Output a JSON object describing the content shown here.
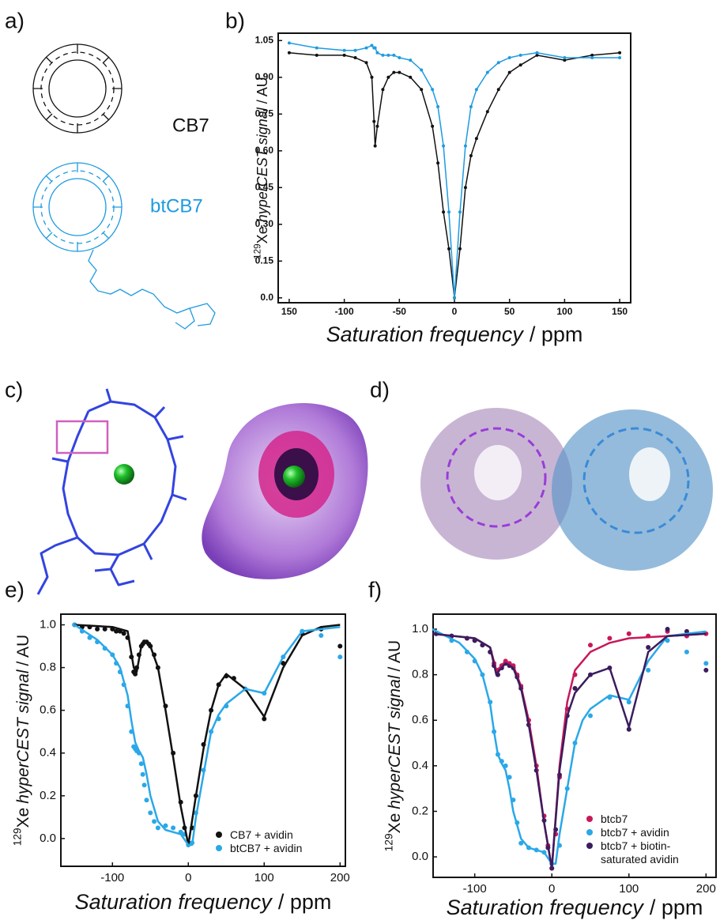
{
  "panels": [
    "a)",
    "b)",
    "c)",
    "d)",
    "e)",
    "f)"
  ],
  "molecules": [
    "CB7",
    "btCB7"
  ],
  "chart_data": [
    {
      "type": "line",
      "xlabel": {
        "italic": "Saturation frequency",
        "unit": "/ ppm"
      },
      "ylabel": {
        "isotope": "129",
        "nucleus": "Xe",
        "italic": "hyperCEST signal",
        "unit": "/ AU"
      },
      "xlim": [
        -160,
        160
      ],
      "ylim": [
        -0.02,
        1.08
      ],
      "xticks": [
        {
          "value": -150,
          "label": "150"
        },
        -100,
        -50,
        0,
        50,
        100,
        150
      ],
      "yticks": [
        {
          "value": 0,
          "label": "0.0"
        },
        0.15,
        {
          "value": 0.3,
          "label": "0.30"
        },
        0.45,
        {
          "value": 0.6,
          "label": "0.60"
        },
        0.75,
        {
          "value": 0.9,
          "label": "0.90"
        },
        1.05
      ],
      "x": [
        -150,
        -125,
        -100,
        -90,
        -80,
        -75,
        -73,
        -72,
        -70,
        -65,
        -60,
        -55,
        -50,
        -40,
        -30,
        -20,
        -15,
        -10,
        -5,
        0,
        5,
        10,
        15,
        20,
        30,
        40,
        50,
        60,
        75,
        100,
        125,
        150
      ],
      "series": [
        {
          "color": "#111111",
          "kind": "line+markers",
          "values": [
            1.0,
            0.99,
            0.99,
            0.98,
            0.96,
            0.9,
            0.72,
            0.62,
            0.7,
            0.85,
            0.9,
            0.92,
            0.92,
            0.9,
            0.85,
            0.7,
            0.55,
            0.35,
            0.2,
            0.0,
            0.2,
            0.45,
            0.58,
            0.65,
            0.76,
            0.85,
            0.92,
            0.95,
            0.99,
            0.97,
            0.99,
            1.0
          ]
        },
        {
          "color": "#1e9be0",
          "kind": "line+markers",
          "values": [
            1.04,
            1.02,
            1.01,
            1.01,
            1.02,
            1.03,
            1.02,
            1.02,
            1.0,
            0.99,
            0.99,
            0.99,
            0.98,
            0.97,
            0.93,
            0.85,
            0.78,
            0.62,
            0.35,
            0.0,
            0.35,
            0.62,
            0.78,
            0.85,
            0.92,
            0.96,
            0.98,
            0.99,
            1.0,
            0.98,
            0.98,
            0.98
          ]
        }
      ]
    },
    {
      "type": "line",
      "xlabel": {
        "italic": "Saturation frequency",
        "unit": "/ ppm"
      },
      "ylabel": {
        "isotope": "129",
        "nucleus": "Xe",
        "italic": "hyperCEST signal",
        "unit": "/ AU"
      },
      "xlim": [
        -168,
        207
      ],
      "ylim": [
        -0.13,
        1.05
      ],
      "xticks": [
        -100,
        0,
        100,
        200
      ],
      "yticks": [
        {
          "value": 0,
          "label": "0.0"
        },
        0.2,
        0.4,
        0.6,
        0.8,
        {
          "value": 1,
          "label": "1.0"
        }
      ],
      "legend": "lower right",
      "series": [
        {
          "name": "CB7 + avidin",
          "color": "#111111",
          "kind": "scatter",
          "x": [
            -150,
            -140,
            -130,
            -120,
            -110,
            -100,
            -95,
            -90,
            -85,
            -80,
            -75,
            -72,
            -70,
            -68,
            -65,
            -62,
            -60,
            -58,
            -55,
            -52,
            -50,
            -45,
            -40,
            -30,
            -20,
            -10,
            -5,
            0,
            5,
            10,
            20,
            30,
            40,
            50,
            60,
            75,
            100,
            125,
            150,
            175,
            200
          ],
          "values": [
            1.0,
            0.99,
            0.99,
            0.98,
            0.98,
            0.98,
            0.97,
            0.97,
            0.96,
            0.94,
            0.85,
            0.78,
            0.77,
            0.8,
            0.86,
            0.9,
            0.91,
            0.92,
            0.92,
            0.91,
            0.9,
            0.86,
            0.8,
            0.62,
            0.4,
            0.17,
            0.05,
            -0.02,
            0.05,
            0.2,
            0.44,
            0.6,
            0.72,
            0.76,
            0.75,
            0.7,
            0.56,
            0.82,
            0.96,
            0.98,
            0.9
          ]
        },
        {
          "name": "btCB7 + avidin",
          "color": "#2aa8e8",
          "kind": "scatter",
          "x": [
            -150,
            -140,
            -130,
            -120,
            -110,
            -100,
            -95,
            -90,
            -85,
            -80,
            -75,
            -72,
            -70,
            -68,
            -65,
            -62,
            -60,
            -58,
            -55,
            -50,
            -45,
            -40,
            -30,
            -20,
            -10,
            -5,
            0,
            5,
            10,
            20,
            30,
            40,
            50,
            75,
            100,
            125,
            150,
            175,
            200
          ],
          "values": [
            1.0,
            0.97,
            0.94,
            0.92,
            0.89,
            0.86,
            0.82,
            0.78,
            0.72,
            0.62,
            0.5,
            0.43,
            0.42,
            0.41,
            0.4,
            0.35,
            0.3,
            0.25,
            0.18,
            0.12,
            0.08,
            0.05,
            0.06,
            0.05,
            0.03,
            0.02,
            -0.03,
            -0.02,
            0.12,
            0.32,
            0.5,
            0.56,
            0.62,
            0.7,
            0.68,
            0.85,
            0.97,
            0.95,
            0.85
          ]
        },
        {
          "color": "#111111",
          "kind": "line",
          "x": [
            -150,
            -100,
            -80,
            -72,
            -68,
            -62,
            -56,
            -50,
            -40,
            -30,
            -20,
            -10,
            0,
            10,
            20,
            30,
            40,
            50,
            75,
            100,
            125,
            150,
            175,
            200
          ],
          "values": [
            1.0,
            0.99,
            0.97,
            0.8,
            0.78,
            0.9,
            0.92,
            0.9,
            0.8,
            0.6,
            0.38,
            0.15,
            -0.03,
            0.2,
            0.42,
            0.6,
            0.72,
            0.77,
            0.7,
            0.57,
            0.8,
            0.95,
            0.99,
            1.0
          ]
        },
        {
          "color": "#2aa8e8",
          "kind": "line",
          "x": [
            -150,
            -120,
            -100,
            -90,
            -80,
            -75,
            -70,
            -65,
            -60,
            -55,
            -50,
            -40,
            -30,
            -20,
            -10,
            0,
            5,
            10,
            20,
            30,
            40,
            50,
            75,
            100,
            125,
            150,
            200
          ],
          "values": [
            1.0,
            0.93,
            0.86,
            0.8,
            0.67,
            0.55,
            0.45,
            0.41,
            0.38,
            0.3,
            0.2,
            0.08,
            0.04,
            0.03,
            0.02,
            -0.03,
            -0.03,
            0.1,
            0.3,
            0.5,
            0.58,
            0.63,
            0.7,
            0.68,
            0.85,
            0.97,
            0.99
          ]
        }
      ]
    },
    {
      "type": "line",
      "xlabel": {
        "italic": "Saturation frequency",
        "unit": "/ ppm"
      },
      "ylabel": {
        "isotope": "129",
        "nucleus": "Xe",
        "italic": "hyperCEST signal",
        "unit": "/ AU"
      },
      "xlim": [
        -154,
        213
      ],
      "ylim": [
        -0.09,
        1.066
      ],
      "xticks": [
        -100,
        0,
        100,
        200
      ],
      "yticks": [
        {
          "value": 0,
          "label": "0.0"
        },
        0.2,
        0.4,
        0.6,
        0.8,
        {
          "value": 1,
          "label": "1.0"
        }
      ],
      "legend": "lower right",
      "series": [
        {
          "name": "btcb7",
          "color": "#c8185a",
          "kind": "scatter",
          "x": [
            -150,
            -130,
            -110,
            -100,
            -90,
            -80,
            -75,
            -70,
            -65,
            -60,
            -55,
            -50,
            -45,
            -40,
            -30,
            -20,
            -10,
            -5,
            0,
            5,
            10,
            20,
            30,
            50,
            75,
            100,
            125,
            150,
            175,
            200
          ],
          "values": [
            0.98,
            0.97,
            0.96,
            0.95,
            0.93,
            0.9,
            0.85,
            0.82,
            0.84,
            0.86,
            0.85,
            0.84,
            0.8,
            0.75,
            0.6,
            0.4,
            0.18,
            0.05,
            -0.05,
            0.1,
            0.35,
            0.65,
            0.8,
            0.93,
            0.96,
            0.98,
            0.97,
            0.99,
            0.97,
            0.98
          ]
        },
        {
          "name": "btcb7 + avidin",
          "color": "#2aa8e8",
          "kind": "scatter",
          "x": [
            -150,
            -130,
            -110,
            -100,
            -90,
            -80,
            -75,
            -70,
            -65,
            -60,
            -55,
            -50,
            -45,
            -40,
            -30,
            -20,
            -10,
            0,
            10,
            20,
            30,
            50,
            75,
            100,
            125,
            150,
            175,
            200
          ],
          "values": [
            0.98,
            0.95,
            0.9,
            0.86,
            0.8,
            0.68,
            0.55,
            0.45,
            0.42,
            0.4,
            0.35,
            0.25,
            0.15,
            0.06,
            0.04,
            0.03,
            0.02,
            -0.03,
            0.05,
            0.3,
            0.5,
            0.62,
            0.7,
            0.68,
            0.82,
            0.95,
            0.9,
            0.85
          ]
        },
        {
          "name": "btcb7 + biotin-\nsaturated avidin",
          "color": "#3b1c5e",
          "kind": "scatter",
          "x": [
            -150,
            -130,
            -110,
            -100,
            -90,
            -80,
            -75,
            -70,
            -65,
            -60,
            -55,
            -50,
            -45,
            -40,
            -30,
            -20,
            -10,
            -5,
            0,
            5,
            10,
            20,
            30,
            50,
            75,
            100,
            125,
            150,
            175,
            200
          ],
          "values": [
            0.98,
            0.97,
            0.96,
            0.95,
            0.93,
            0.9,
            0.84,
            0.8,
            0.83,
            0.85,
            0.84,
            0.83,
            0.79,
            0.74,
            0.58,
            0.38,
            0.16,
            0.04,
            -0.05,
            0.12,
            0.36,
            0.62,
            0.74,
            0.8,
            0.83,
            0.56,
            0.92,
            1.0,
            0.99,
            0.82
          ]
        },
        {
          "color": "#c8185a",
          "kind": "line",
          "x": [
            -155,
            -100,
            -80,
            -72,
            -68,
            -60,
            -50,
            -40,
            -30,
            -20,
            -10,
            0,
            10,
            20,
            30,
            50,
            75,
            100,
            150,
            200
          ],
          "values": [
            0.98,
            0.96,
            0.92,
            0.82,
            0.83,
            0.86,
            0.84,
            0.75,
            0.6,
            0.4,
            0.15,
            -0.05,
            0.4,
            0.68,
            0.82,
            0.9,
            0.94,
            0.96,
            0.97,
            0.98
          ]
        },
        {
          "color": "#2aa8e8",
          "kind": "line",
          "x": [
            -155,
            -120,
            -100,
            -90,
            -80,
            -75,
            -70,
            -65,
            -60,
            -55,
            -50,
            -40,
            -30,
            -20,
            -10,
            0,
            5,
            10,
            20,
            30,
            40,
            50,
            75,
            100,
            125,
            150,
            200
          ],
          "values": [
            1.0,
            0.94,
            0.87,
            0.8,
            0.67,
            0.55,
            0.45,
            0.41,
            0.38,
            0.3,
            0.2,
            0.08,
            0.04,
            0.03,
            0.02,
            -0.03,
            -0.03,
            0.1,
            0.3,
            0.5,
            0.6,
            0.65,
            0.71,
            0.69,
            0.86,
            0.97,
            0.99
          ]
        },
        {
          "color": "#3b1c5e",
          "kind": "line",
          "x": [
            -155,
            -100,
            -80,
            -72,
            -68,
            -60,
            -50,
            -40,
            -30,
            -20,
            -10,
            0,
            10,
            20,
            30,
            50,
            75,
            100,
            125,
            150,
            200
          ],
          "values": [
            0.98,
            0.96,
            0.92,
            0.8,
            0.82,
            0.85,
            0.83,
            0.74,
            0.58,
            0.38,
            0.15,
            -0.05,
            0.38,
            0.62,
            0.72,
            0.8,
            0.83,
            0.57,
            0.9,
            0.97,
            0.98
          ]
        }
      ]
    }
  ]
}
